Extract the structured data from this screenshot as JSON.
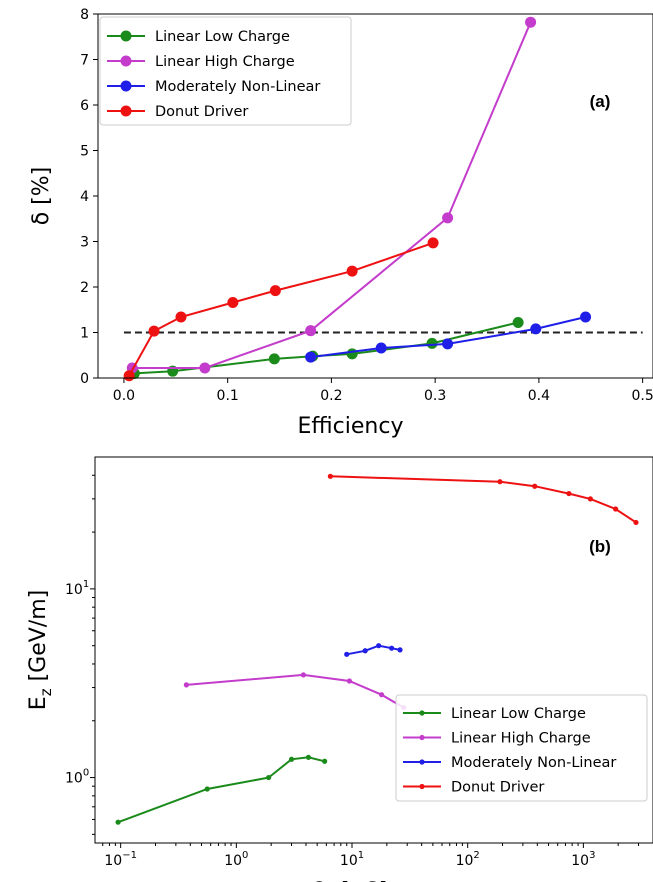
{
  "chart_data": [
    {
      "type": "line",
      "panel_label": "(a)",
      "xlabel": "Efficiency",
      "ylabel": "δ [%]",
      "xlim": [
        -0.025,
        0.51
      ],
      "ylim": [
        0,
        8
      ],
      "xticks": [
        0.0,
        0.1,
        0.2,
        0.3,
        0.4,
        0.5
      ],
      "xtick_labels": [
        "0.0",
        "0.1",
        "0.2",
        "0.3",
        "0.4",
        "0.5"
      ],
      "yticks": [
        0,
        1,
        2,
        3,
        4,
        5,
        6,
        7,
        8
      ],
      "ytick_labels": [
        "0",
        "1",
        "2",
        "3",
        "4",
        "5",
        "6",
        "7",
        "8"
      ],
      "grid": false,
      "legend_position": "upper-left",
      "reference_line": {
        "y": 1,
        "x": [
          0.0,
          0.5
        ],
        "style": "dashed",
        "color": "#222222"
      },
      "series": [
        {
          "name": "Linear Low Charge",
          "color": "#1a8a1a",
          "x": [
            0.01,
            0.047,
            0.145,
            0.182,
            0.22,
            0.297,
            0.38
          ],
          "y": [
            0.1,
            0.15,
            0.42,
            0.48,
            0.53,
            0.76,
            1.22
          ]
        },
        {
          "name": "Linear High Charge",
          "color": "#c43ccc",
          "x": [
            0.008,
            0.078,
            0.18,
            0.312,
            0.392
          ],
          "y": [
            0.22,
            0.22,
            1.04,
            3.52,
            7.82
          ]
        },
        {
          "name": "Moderately Non-Linear",
          "color": "#1f1fe8",
          "x": [
            0.18,
            0.248,
            0.312,
            0.397,
            0.445
          ],
          "y": [
            0.46,
            0.66,
            0.75,
            1.08,
            1.34
          ]
        },
        {
          "name": "Donut Driver",
          "color": "#ee1111",
          "x": [
            0.005,
            0.029,
            0.055,
            0.105,
            0.146,
            0.22,
            0.298
          ],
          "y": [
            0.05,
            1.03,
            1.34,
            1.66,
            1.92,
            2.35,
            2.97
          ]
        }
      ]
    },
    {
      "type": "line",
      "panel_label": "(b)",
      "xlabel": "Q_t [pC]",
      "ylabel": "E_z [GeV/m]",
      "xscale": "log",
      "yscale": "log",
      "xlim": [
        0.06,
        4000
      ],
      "ylim": [
        0.45,
        50
      ],
      "xticks": [
        0.1,
        1,
        10,
        100,
        1000
      ],
      "xtick_labels": [
        [
          "10",
          "−1"
        ],
        [
          "10",
          "0"
        ],
        [
          "10",
          "1"
        ],
        [
          "10",
          "2"
        ],
        [
          "10",
          "3"
        ]
      ],
      "yticks": [
        1,
        10
      ],
      "ytick_labels": [
        [
          "10",
          "0"
        ],
        [
          "10",
          "1"
        ]
      ],
      "grid": false,
      "legend_position": "lower-right",
      "series": [
        {
          "name": "Linear Low Charge",
          "color": "#1a8a1a",
          "x": [
            0.095,
            0.56,
            1.9,
            3.0,
            4.2,
            5.8
          ],
          "y": [
            0.58,
            0.87,
            1.0,
            1.25,
            1.28,
            1.22
          ]
        },
        {
          "name": "Linear High Charge",
          "color": "#c43ccc",
          "x": [
            0.37,
            3.8,
            9.5,
            18,
            28
          ],
          "y": [
            3.1,
            3.5,
            3.25,
            2.75,
            2.35
          ]
        },
        {
          "name": "Moderately Non-Linear",
          "color": "#1f1fe8",
          "x": [
            9.0,
            13,
            17,
            22,
            26
          ],
          "y": [
            4.5,
            4.7,
            5.0,
            4.85,
            4.75
          ]
        },
        {
          "name": "Donut Driver",
          "color": "#ee1111",
          "x": [
            6.5,
            190,
            380,
            750,
            1150,
            1900,
            2850
          ],
          "y": [
            39.5,
            37,
            35,
            32,
            30,
            26.5,
            22.5
          ]
        }
      ]
    }
  ]
}
